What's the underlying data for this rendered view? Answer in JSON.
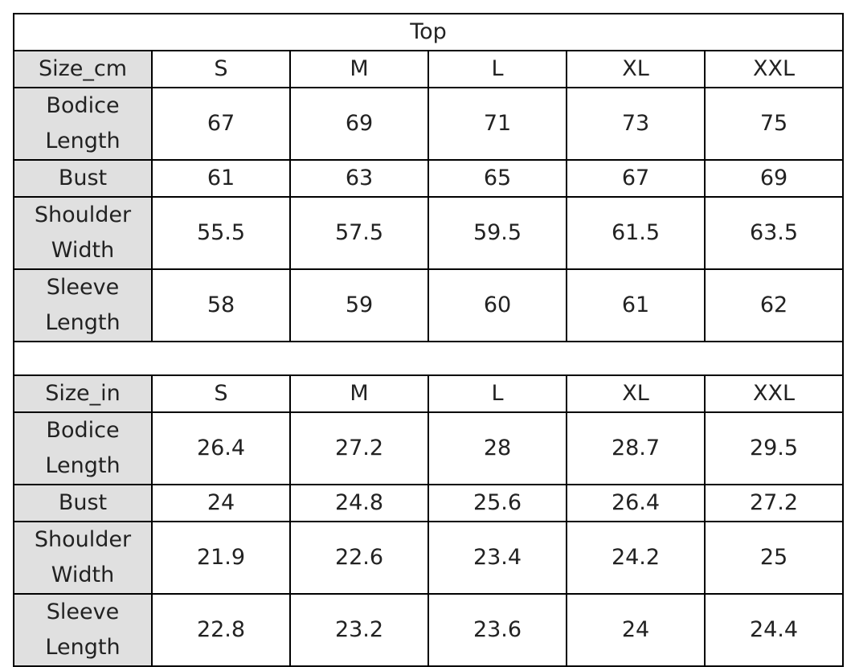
{
  "title": "Top",
  "tables": [
    {
      "header": [
        "Size_cm",
        "S",
        "M",
        "L",
        "XL",
        "XXL"
      ],
      "rows": [
        [
          "Bodice Length",
          67,
          69,
          71,
          73,
          75
        ],
        [
          "Bust",
          61,
          63,
          65,
          67,
          69
        ],
        [
          "Shoulder Width",
          55.5,
          57.5,
          59.5,
          61.5,
          63.5
        ],
        [
          "Sleeve Length",
          58,
          59,
          60,
          61,
          62
        ]
      ]
    },
    {
      "header": [
        "Size_in",
        "S",
        "M",
        "L",
        "XL",
        "XXL"
      ],
      "rows": [
        [
          "Bodice Length",
          26.4,
          27.2,
          28,
          28.7,
          29.5
        ],
        [
          "Bust",
          24,
          24.8,
          25.6,
          26.4,
          27.2
        ],
        [
          "Shoulder Width",
          21.9,
          22.6,
          23.4,
          24.2,
          25
        ],
        [
          "Sleeve Length",
          22.8,
          23.2,
          23.6,
          24,
          24.4
        ]
      ]
    }
  ]
}
